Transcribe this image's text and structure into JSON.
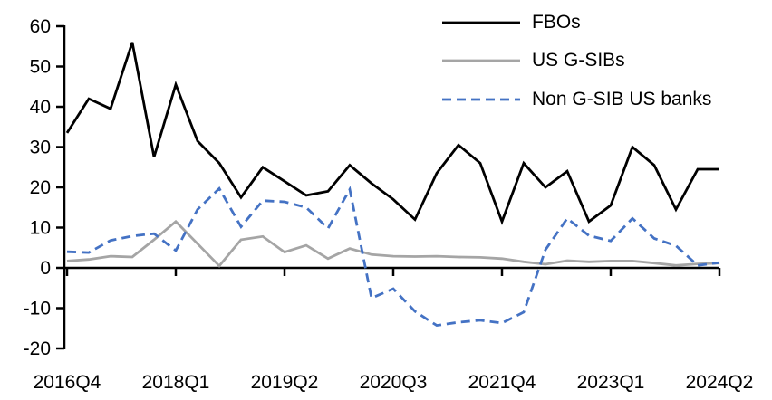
{
  "chart_data": {
    "type": "line",
    "title": "",
    "xlabel": "",
    "ylabel": "",
    "grid": "off",
    "legend_position": "top-right-inside",
    "ylim": [
      -20,
      60
    ],
    "y_ticks": [
      60,
      50,
      40,
      30,
      20,
      10,
      0,
      -10,
      -20
    ],
    "x_tick_indices": [
      0,
      5,
      10,
      15,
      20,
      25,
      30
    ],
    "x_tick_labels": [
      "2016Q4",
      "2018Q1",
      "2019Q2",
      "2020Q3",
      "2021Q4",
      "2023Q1",
      "2024Q2"
    ],
    "categories": [
      "2016Q4",
      "2017Q1",
      "2017Q2",
      "2017Q3",
      "2017Q4",
      "2018Q1",
      "2018Q2",
      "2018Q3",
      "2018Q4",
      "2019Q1",
      "2019Q2",
      "2019Q3",
      "2019Q4",
      "2020Q1",
      "2020Q2",
      "2020Q3",
      "2020Q4",
      "2021Q1",
      "2021Q2",
      "2021Q3",
      "2021Q4",
      "2022Q1",
      "2022Q2",
      "2022Q3",
      "2022Q4",
      "2023Q1",
      "2023Q2",
      "2023Q3",
      "2023Q4",
      "2024Q1",
      "2024Q2"
    ],
    "series": [
      {
        "name": "FBOs",
        "color": "#000000",
        "line_style": "solid",
        "values": [
          33.5,
          42,
          39.5,
          56,
          27.5,
          45.5,
          31.5,
          26,
          17.5,
          25,
          21.5,
          18,
          19,
          25.5,
          21,
          17,
          12,
          23.5,
          30.5,
          26,
          11.5,
          26,
          20,
          24,
          11.5,
          15.5,
          30,
          25.5,
          14.5,
          24.5,
          24.5
        ]
      },
      {
        "name": "US G-SIBs",
        "color": "#A5A5A5",
        "line_style": "solid",
        "values": [
          1.7,
          2.1,
          2.9,
          2.7,
          7,
          11.5,
          6,
          0.5,
          7,
          7.8,
          3.9,
          5.6,
          2.3,
          4.8,
          3.3,
          2.9,
          2.8,
          2.9,
          2.7,
          2.6,
          2.3,
          1.5,
          0.9,
          1.8,
          1.5,
          1.7,
          1.7,
          1.2,
          0.6,
          1,
          1.2
        ]
      },
      {
        "name": "Non G-SIB US banks",
        "color": "#4472C4",
        "line_style": "dashed",
        "values": [
          4,
          3.8,
          6.8,
          7.9,
          8.5,
          4.3,
          14.5,
          19.7,
          10.2,
          16.7,
          16.4,
          15,
          9.8,
          19.5,
          -7.5,
          -5.2,
          -10.8,
          -14.3,
          -13.5,
          -13,
          -13.7,
          -11,
          4.5,
          12.3,
          8,
          6.7,
          12.3,
          7.3,
          5.5,
          0.6,
          1.3
        ]
      }
    ]
  }
}
